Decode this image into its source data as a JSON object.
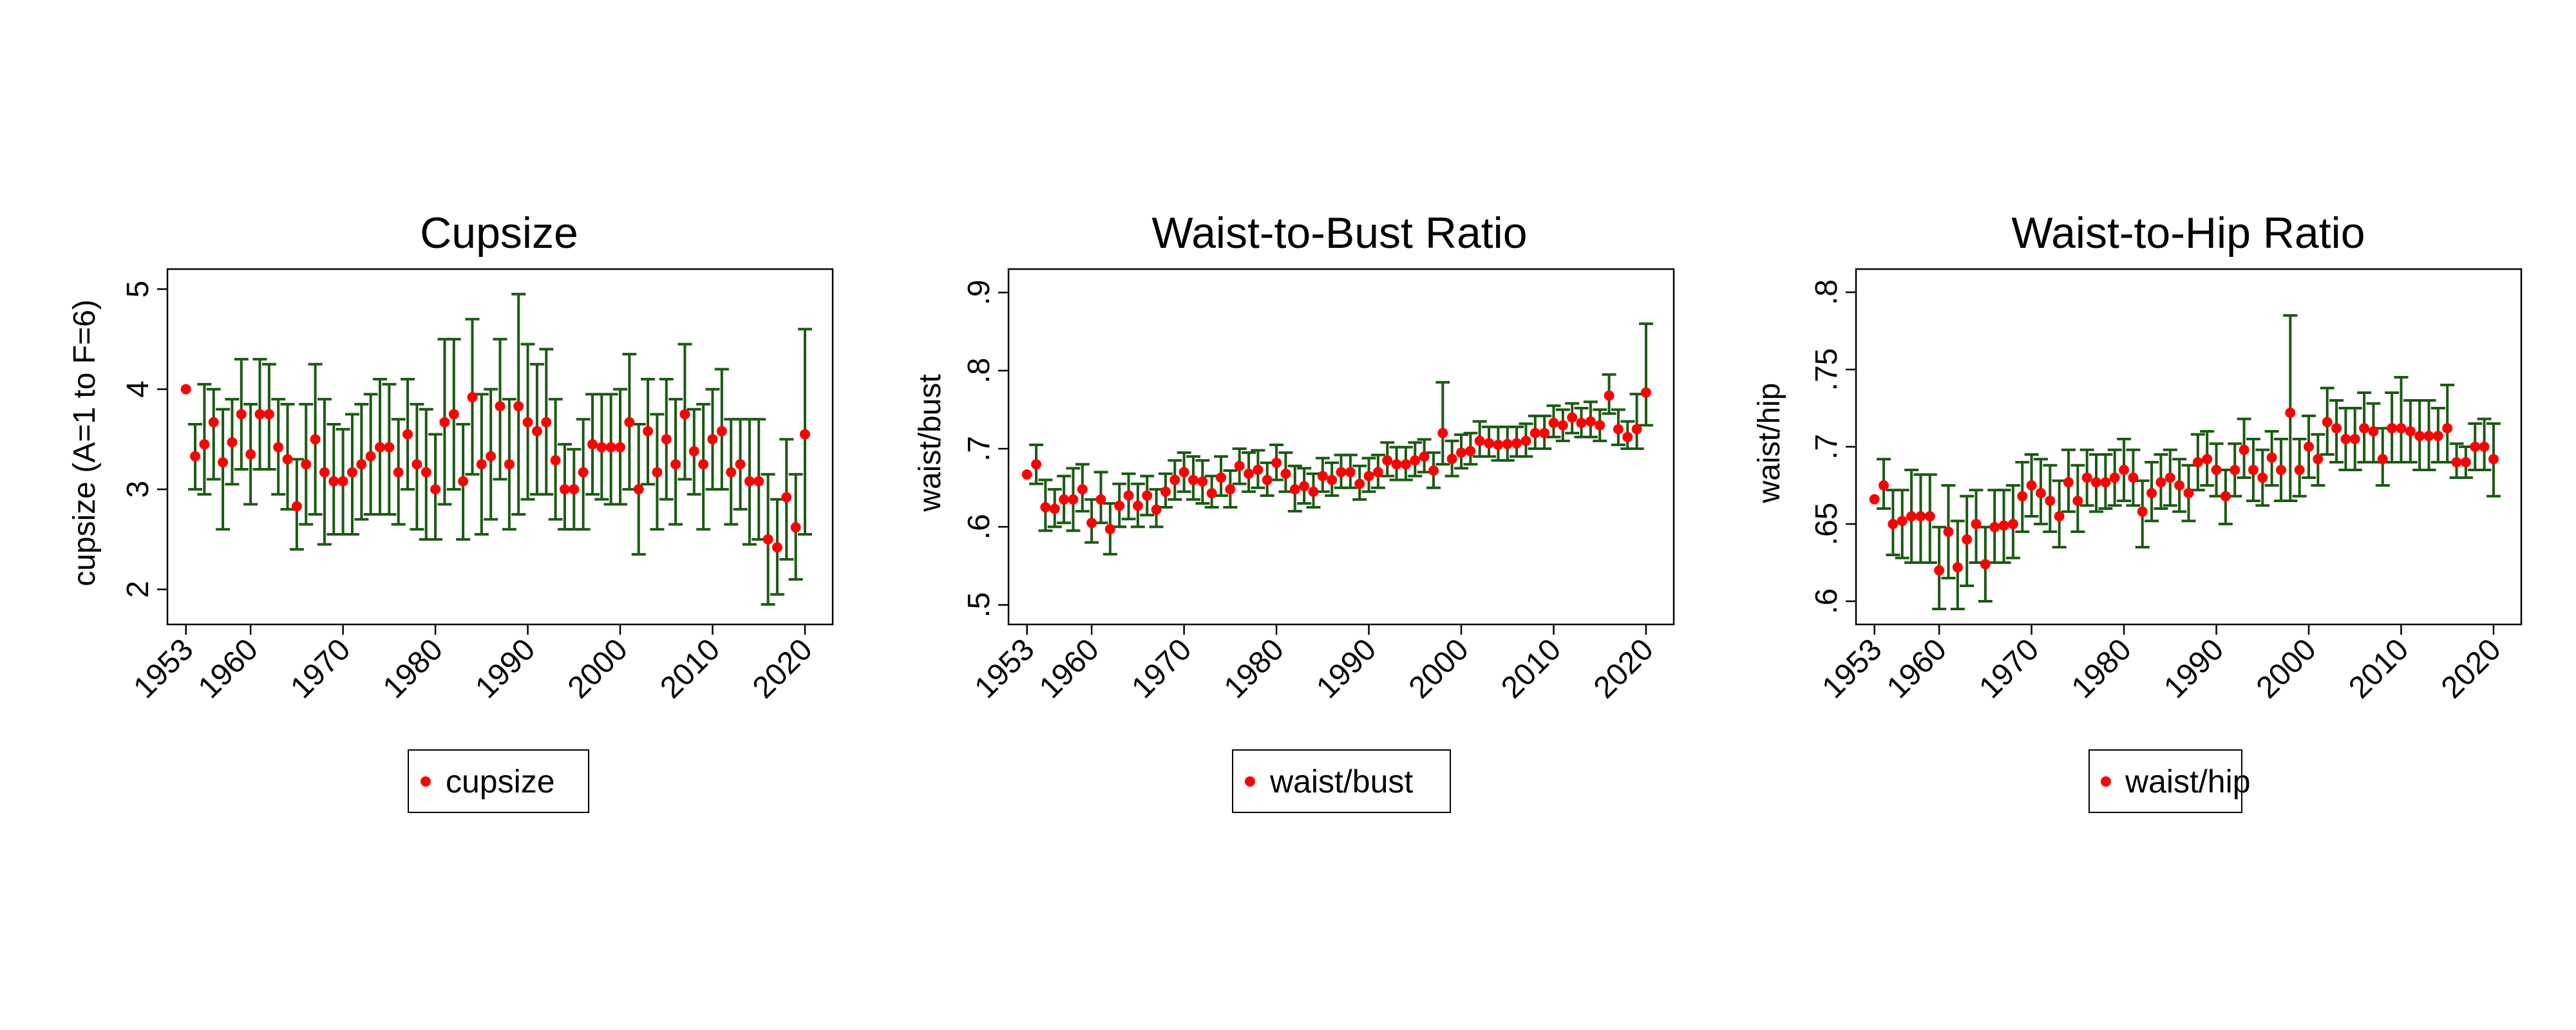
{
  "colors": {
    "marker": "#ff0000",
    "errorbar": "#1a5a12",
    "frame": "#000000",
    "background": "#ffffff"
  },
  "chart_data": [
    {
      "type": "scatter",
      "title": "Cupsize",
      "xlabel": "",
      "ylabel": "cupsize (A=1 to F=6)",
      "xlim": [
        1951,
        2023
      ],
      "ylim": [
        1.65,
        5.2
      ],
      "xticks": [
        1953,
        1960,
        1970,
        1980,
        1990,
        2000,
        2010,
        2020
      ],
      "xtick_labels": [
        "1953",
        "1960",
        "1970",
        "1980",
        "1990",
        "2000",
        "2010",
        "2020"
      ],
      "yticks": [
        2,
        3,
        4,
        5
      ],
      "ytick_labels": [
        "2",
        "3",
        "4",
        "5"
      ],
      "grid": false,
      "legend": {
        "position": "bottom",
        "entries": [
          "cupsize"
        ]
      },
      "series": [
        {
          "name": "cupsize",
          "marker_color": "#ff0000",
          "errorbar_color": "#1a5a12",
          "x": [
            1953,
            1954,
            1955,
            1956,
            1957,
            1958,
            1959,
            1960,
            1961,
            1962,
            1963,
            1964,
            1965,
            1966,
            1967,
            1968,
            1969,
            1970,
            1971,
            1972,
            1973,
            1974,
            1975,
            1976,
            1977,
            1978,
            1979,
            1980,
            1981,
            1982,
            1983,
            1984,
            1985,
            1986,
            1987,
            1988,
            1989,
            1990,
            1991,
            1992,
            1993,
            1994,
            1995,
            1996,
            1997,
            1998,
            1999,
            2000,
            2001,
            2002,
            2003,
            2004,
            2005,
            2006,
            2007,
            2008,
            2009,
            2010,
            2011,
            2012,
            2013,
            2014,
            2015,
            2016,
            2017,
            2018,
            2019,
            2020
          ],
          "y": [
            4.0,
            3.33,
            3.45,
            3.67,
            3.27,
            3.47,
            3.75,
            3.35,
            3.75,
            3.75,
            3.42,
            3.3,
            2.83,
            3.25,
            3.5,
            3.17,
            3.08,
            3.08,
            3.17,
            3.25,
            3.33,
            3.42,
            3.42,
            3.17,
            3.55,
            3.25,
            3.17,
            3.0,
            3.67,
            3.75,
            3.08,
            3.92,
            3.25,
            3.33,
            3.83,
            3.25,
            3.83,
            3.67,
            3.58,
            3.67,
            3.29,
            3.0,
            3.0,
            3.17,
            3.45,
            3.42,
            3.42,
            3.42,
            3.67,
            3.0,
            3.58,
            3.17,
            3.5,
            3.25,
            3.75,
            3.38,
            3.25,
            3.5,
            3.58,
            3.17,
            3.25,
            3.08,
            3.08,
            2.5,
            2.42,
            2.92,
            2.62,
            3.55
          ],
          "lo": [
            4.0,
            3.0,
            2.95,
            3.1,
            2.6,
            3.05,
            3.2,
            2.85,
            3.2,
            3.2,
            2.95,
            2.8,
            2.4,
            2.65,
            2.75,
            2.45,
            2.55,
            2.55,
            2.55,
            2.7,
            2.75,
            2.75,
            2.75,
            2.65,
            3.0,
            2.6,
            2.5,
            2.5,
            2.85,
            3.0,
            2.5,
            3.15,
            2.55,
            2.7,
            3.1,
            2.6,
            2.75,
            2.9,
            2.95,
            2.95,
            2.7,
            2.6,
            2.6,
            2.6,
            2.95,
            2.9,
            2.85,
            2.85,
            3.0,
            2.35,
            3.05,
            2.6,
            2.9,
            2.65,
            3.1,
            2.95,
            2.6,
            3.0,
            3.0,
            2.65,
            2.8,
            2.45,
            2.5,
            1.85,
            1.95,
            2.3,
            2.1,
            2.55
          ],
          "hi": [
            4.0,
            3.65,
            4.05,
            4.0,
            3.8,
            3.9,
            4.3,
            3.85,
            4.3,
            4.25,
            3.9,
            3.85,
            3.3,
            3.85,
            4.25,
            3.9,
            3.65,
            3.6,
            3.75,
            3.85,
            3.95,
            4.1,
            4.05,
            3.7,
            4.1,
            3.85,
            3.8,
            3.55,
            4.5,
            4.5,
            3.65,
            4.7,
            3.95,
            4.0,
            4.5,
            3.9,
            4.95,
            4.45,
            4.25,
            4.4,
            3.9,
            3.45,
            3.4,
            3.7,
            3.95,
            3.95,
            3.95,
            4.0,
            4.35,
            3.65,
            4.1,
            3.75,
            4.1,
            3.9,
            4.45,
            3.8,
            3.85,
            4.0,
            4.2,
            3.7,
            3.7,
            3.7,
            3.7,
            3.15,
            2.9,
            3.5,
            3.15,
            4.6
          ]
        }
      ]
    },
    {
      "type": "scatter",
      "title": "Waist-to-Bust Ratio",
      "xlabel": "",
      "ylabel": "waist/bust",
      "xlim": [
        1951,
        2023
      ],
      "ylim": [
        0.475,
        0.93
      ],
      "xticks": [
        1953,
        1960,
        1970,
        1980,
        1990,
        2000,
        2010,
        2020
      ],
      "xtick_labels": [
        "1953",
        "1960",
        "1970",
        "1980",
        "1990",
        "2000",
        "2010",
        "2020"
      ],
      "yticks": [
        0.5,
        0.6,
        0.7,
        0.8,
        0.9
      ],
      "ytick_labels": [
        ".5",
        ".6",
        ".7",
        ".8",
        ".9"
      ],
      "grid": false,
      "legend": {
        "position": "bottom",
        "entries": [
          "waist/bust"
        ]
      },
      "series": [
        {
          "name": "waist/bust",
          "marker_color": "#ff0000",
          "errorbar_color": "#1a5a12",
          "x": [
            1953,
            1954,
            1955,
            1956,
            1957,
            1958,
            1959,
            1960,
            1961,
            1962,
            1963,
            1964,
            1965,
            1966,
            1967,
            1968,
            1969,
            1970,
            1971,
            1972,
            1973,
            1974,
            1975,
            1976,
            1977,
            1978,
            1979,
            1980,
            1981,
            1982,
            1983,
            1984,
            1985,
            1986,
            1987,
            1988,
            1989,
            1990,
            1991,
            1992,
            1993,
            1994,
            1995,
            1996,
            1997,
            1998,
            1999,
            2000,
            2001,
            2002,
            2003,
            2004,
            2005,
            2006,
            2007,
            2008,
            2009,
            2010,
            2011,
            2012,
            2013,
            2014,
            2015,
            2016,
            2017,
            2018,
            2019,
            2020
          ],
          "y": [
            0.667,
            0.68,
            0.625,
            0.623,
            0.635,
            0.635,
            0.648,
            0.605,
            0.635,
            0.597,
            0.627,
            0.64,
            0.627,
            0.64,
            0.622,
            0.645,
            0.66,
            0.67,
            0.66,
            0.658,
            0.643,
            0.663,
            0.648,
            0.678,
            0.668,
            0.673,
            0.66,
            0.682,
            0.668,
            0.648,
            0.652,
            0.645,
            0.665,
            0.66,
            0.67,
            0.67,
            0.655,
            0.665,
            0.67,
            0.685,
            0.68,
            0.68,
            0.685,
            0.69,
            0.672,
            0.72,
            0.687,
            0.695,
            0.697,
            0.71,
            0.707,
            0.705,
            0.706,
            0.707,
            0.71,
            0.72,
            0.72,
            0.733,
            0.73,
            0.74,
            0.733,
            0.735,
            0.73,
            0.768,
            0.725,
            0.715,
            0.725,
            0.772
          ],
          "lo": [
            0.667,
            0.655,
            0.595,
            0.6,
            0.605,
            0.595,
            0.62,
            0.58,
            0.605,
            0.565,
            0.6,
            0.61,
            0.6,
            0.615,
            0.6,
            0.625,
            0.635,
            0.645,
            0.635,
            0.63,
            0.625,
            0.64,
            0.625,
            0.655,
            0.645,
            0.65,
            0.64,
            0.66,
            0.645,
            0.62,
            0.63,
            0.625,
            0.645,
            0.64,
            0.65,
            0.65,
            0.635,
            0.645,
            0.65,
            0.665,
            0.66,
            0.66,
            0.665,
            0.67,
            0.65,
            0.68,
            0.665,
            0.675,
            0.68,
            0.69,
            0.69,
            0.685,
            0.685,
            0.69,
            0.69,
            0.7,
            0.7,
            0.715,
            0.71,
            0.72,
            0.715,
            0.715,
            0.71,
            0.745,
            0.705,
            0.7,
            0.7,
            0.73
          ],
          "hi": [
            0.667,
            0.705,
            0.66,
            0.648,
            0.665,
            0.675,
            0.68,
            0.635,
            0.67,
            0.63,
            0.655,
            0.668,
            0.655,
            0.665,
            0.648,
            0.668,
            0.685,
            0.695,
            0.69,
            0.685,
            0.665,
            0.69,
            0.672,
            0.7,
            0.695,
            0.698,
            0.682,
            0.705,
            0.695,
            0.678,
            0.675,
            0.668,
            0.688,
            0.682,
            0.692,
            0.692,
            0.678,
            0.688,
            0.692,
            0.708,
            0.702,
            0.702,
            0.708,
            0.712,
            0.695,
            0.785,
            0.71,
            0.718,
            0.72,
            0.735,
            0.728,
            0.728,
            0.728,
            0.728,
            0.732,
            0.742,
            0.742,
            0.755,
            0.75,
            0.758,
            0.752,
            0.76,
            0.75,
            0.795,
            0.75,
            0.735,
            0.77,
            0.86
          ]
        }
      ]
    },
    {
      "type": "scatter",
      "title": "Waist-to-Hip Ratio",
      "xlabel": "",
      "ylabel": "waist/hip",
      "xlim": [
        1951,
        2023
      ],
      "ylim": [
        0.585,
        0.815
      ],
      "xticks": [
        1953,
        1960,
        1970,
        1980,
        1990,
        2000,
        2010,
        2020
      ],
      "xtick_labels": [
        "1953",
        "1960",
        "1970",
        "1980",
        "1990",
        "2000",
        "2010",
        "2020"
      ],
      "yticks": [
        0.6,
        0.65,
        0.7,
        0.75,
        0.8
      ],
      "ytick_labels": [
        ".6",
        ".65",
        ".7",
        ".75",
        ".8"
      ],
      "grid": false,
      "legend": {
        "position": "bottom",
        "entries": [
          "waist/hip"
        ]
      },
      "series": [
        {
          "name": "waist/hip",
          "marker_color": "#ff0000",
          "errorbar_color": "#1a5a12",
          "x": [
            1953,
            1954,
            1955,
            1956,
            1957,
            1958,
            1959,
            1960,
            1961,
            1962,
            1963,
            1964,
            1965,
            1966,
            1967,
            1968,
            1969,
            1970,
            1971,
            1972,
            1973,
            1974,
            1975,
            1976,
            1977,
            1978,
            1979,
            1980,
            1981,
            1982,
            1983,
            1984,
            1985,
            1986,
            1987,
            1988,
            1989,
            1990,
            1991,
            1992,
            1993,
            1994,
            1995,
            1996,
            1997,
            1998,
            1999,
            2000,
            2001,
            2002,
            2003,
            2004,
            2005,
            2006,
            2007,
            2008,
            2009,
            2010,
            2011,
            2012,
            2013,
            2014,
            2015,
            2016,
            2017,
            2018,
            2019,
            2020
          ],
          "y": [
            0.666,
            0.675,
            0.65,
            0.652,
            0.655,
            0.655,
            0.655,
            0.62,
            0.645,
            0.622,
            0.64,
            0.65,
            0.624,
            0.648,
            0.649,
            0.65,
            0.668,
            0.675,
            0.67,
            0.665,
            0.655,
            0.677,
            0.665,
            0.68,
            0.677,
            0.677,
            0.68,
            0.685,
            0.68,
            0.658,
            0.67,
            0.677,
            0.68,
            0.675,
            0.67,
            0.69,
            0.692,
            0.685,
            0.668,
            0.685,
            0.698,
            0.685,
            0.68,
            0.693,
            0.685,
            0.722,
            0.685,
            0.7,
            0.692,
            0.716,
            0.712,
            0.705,
            0.705,
            0.712,
            0.71,
            0.692,
            0.712,
            0.712,
            0.71,
            0.707,
            0.707,
            0.707,
            0.712,
            0.69,
            0.69,
            0.7,
            0.7,
            0.692
          ],
          "lo": [
            0.666,
            0.66,
            0.63,
            0.628,
            0.625,
            0.625,
            0.625,
            0.595,
            0.615,
            0.595,
            0.61,
            0.625,
            0.6,
            0.625,
            0.625,
            0.628,
            0.645,
            0.655,
            0.65,
            0.645,
            0.635,
            0.658,
            0.645,
            0.662,
            0.658,
            0.66,
            0.662,
            0.665,
            0.662,
            0.635,
            0.652,
            0.66,
            0.662,
            0.658,
            0.652,
            0.672,
            0.675,
            0.668,
            0.65,
            0.668,
            0.68,
            0.665,
            0.662,
            0.675,
            0.665,
            0.665,
            0.668,
            0.68,
            0.675,
            0.695,
            0.69,
            0.685,
            0.685,
            0.69,
            0.69,
            0.675,
            0.69,
            0.69,
            0.69,
            0.685,
            0.685,
            0.69,
            0.69,
            0.68,
            0.68,
            0.685,
            0.685,
            0.668
          ],
          "hi": [
            0.666,
            0.692,
            0.672,
            0.672,
            0.685,
            0.682,
            0.682,
            0.648,
            0.675,
            0.652,
            0.668,
            0.672,
            0.648,
            0.672,
            0.672,
            0.675,
            0.69,
            0.695,
            0.692,
            0.688,
            0.678,
            0.698,
            0.688,
            0.698,
            0.695,
            0.695,
            0.698,
            0.705,
            0.698,
            0.678,
            0.69,
            0.695,
            0.698,
            0.692,
            0.688,
            0.708,
            0.71,
            0.702,
            0.685,
            0.702,
            0.718,
            0.705,
            0.698,
            0.71,
            0.705,
            0.785,
            0.705,
            0.72,
            0.708,
            0.738,
            0.73,
            0.725,
            0.725,
            0.735,
            0.728,
            0.712,
            0.735,
            0.745,
            0.73,
            0.73,
            0.73,
            0.725,
            0.74,
            0.702,
            0.7,
            0.715,
            0.718,
            0.715
          ]
        }
      ]
    }
  ]
}
